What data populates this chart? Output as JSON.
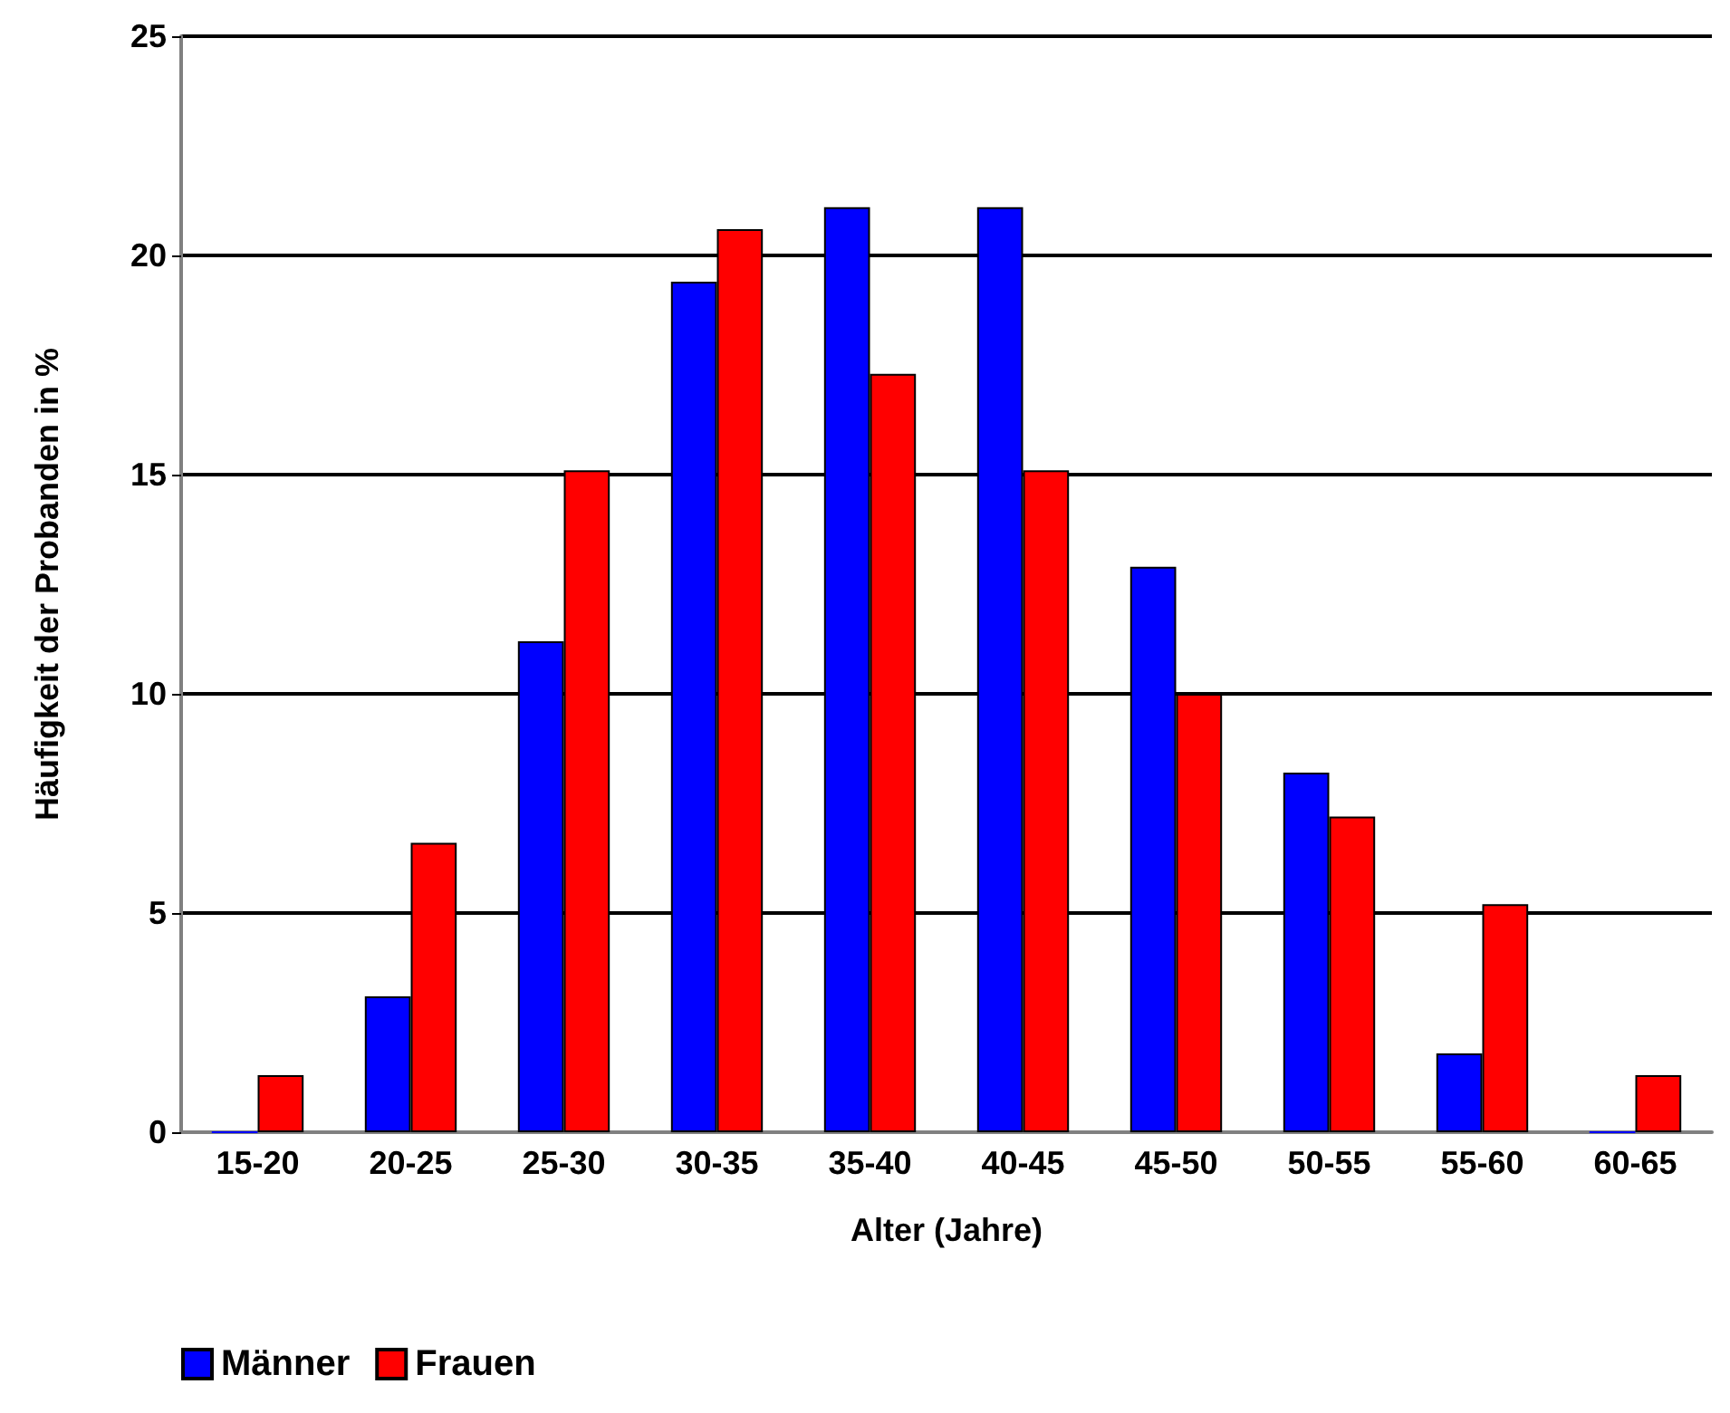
{
  "chart_data": {
    "type": "bar",
    "xlabel": "Alter (Jahre)",
    "ylabel": "Häufigkeit der Probanden in %",
    "categories": [
      "15-20",
      "20-25",
      "25-30",
      "30-35",
      "35-40",
      "40-45",
      "45-50",
      "50-55",
      "55-60",
      "60-65"
    ],
    "series": [
      {
        "name": "Männer",
        "color": "#0000ff",
        "values": [
          0,
          3.1,
          11.2,
          19.4,
          21.1,
          21.1,
          12.9,
          8.2,
          1.8,
          0
        ]
      },
      {
        "name": "Frauen",
        "color": "#ff0000",
        "values": [
          1.3,
          6.6,
          15.1,
          20.6,
          17.3,
          15.1,
          10.0,
          7.2,
          5.2,
          1.3
        ]
      }
    ],
    "ylim": [
      0,
      25
    ],
    "yticks": [
      0,
      5,
      10,
      15,
      20,
      25
    ],
    "grid": "y",
    "legend": "bottom left"
  }
}
